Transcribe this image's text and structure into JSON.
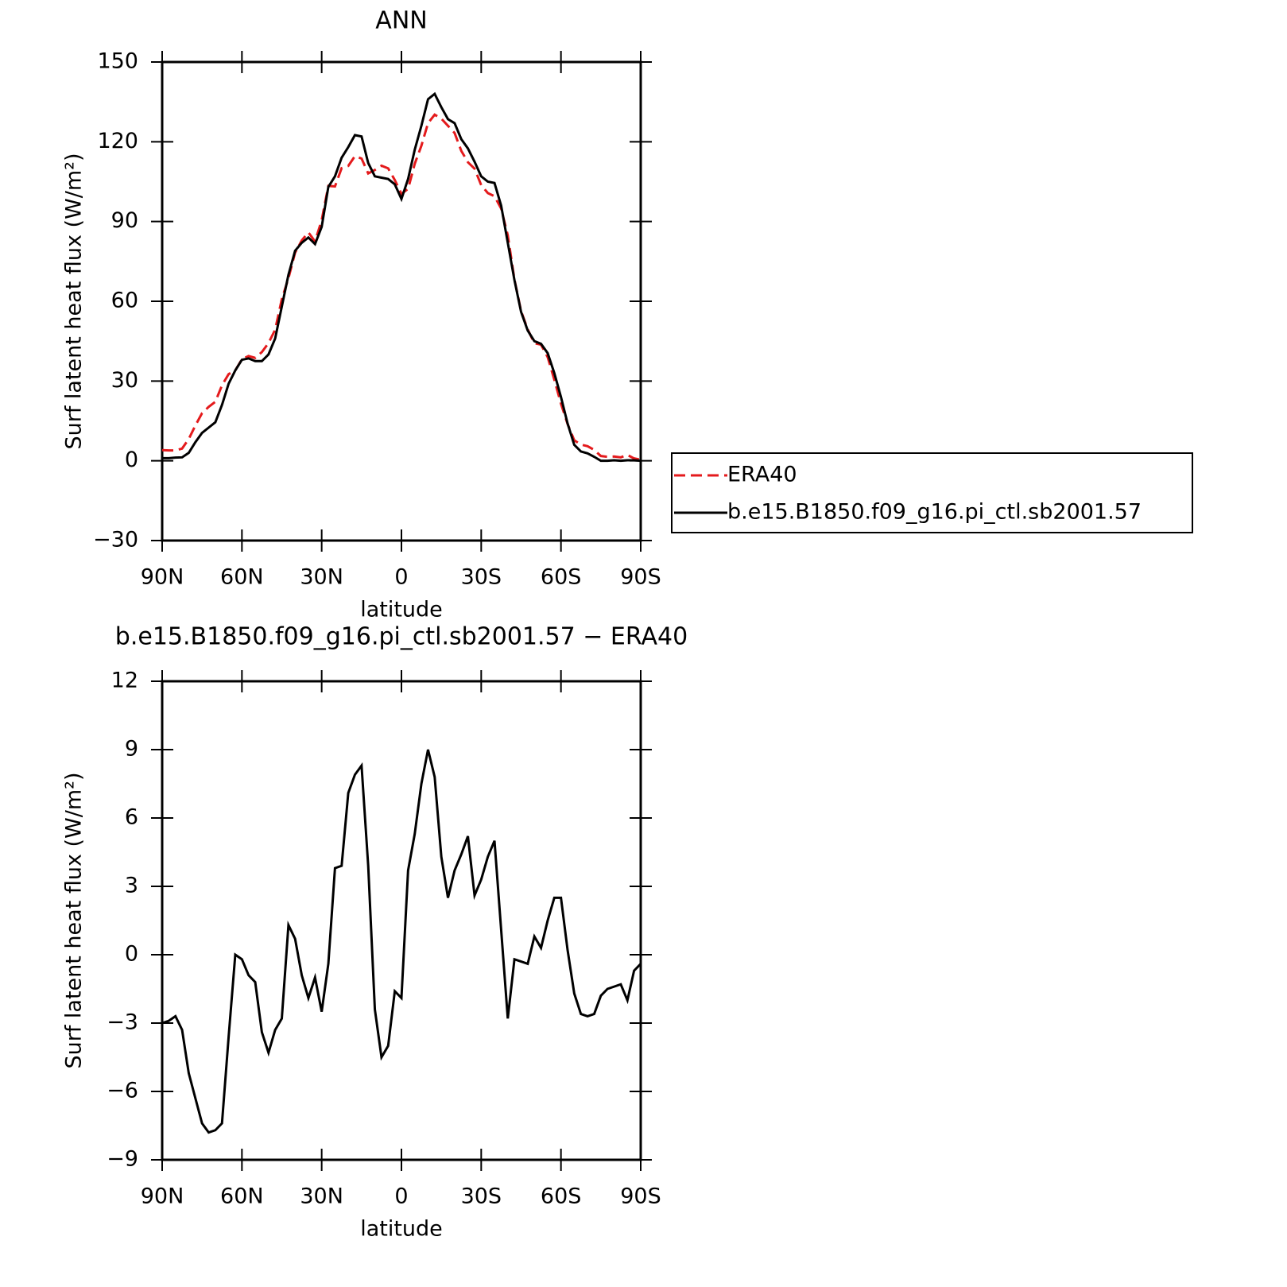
{
  "chart_data": [
    {
      "type": "line",
      "title": "ANN",
      "xlabel": "latitude",
      "ylabel": "Surf latent heat flux (W/m²)",
      "x": [
        90,
        87.5,
        85,
        82.5,
        80,
        77.5,
        75,
        72.5,
        70,
        67.5,
        65,
        62.5,
        60,
        57.5,
        55,
        52.5,
        50,
        47.5,
        45,
        42.5,
        40,
        37.5,
        35,
        32.5,
        30,
        27.5,
        25,
        22.5,
        20,
        17.5,
        15,
        12.5,
        10,
        7.5,
        5,
        2.5,
        0,
        -2.5,
        -5,
        -7.5,
        -10,
        -12.5,
        -15,
        -17.5,
        -20,
        -22.5,
        -25,
        -27.5,
        -30,
        -32.5,
        -35,
        -37.5,
        -40,
        -42.5,
        -45,
        -47.5,
        -50,
        -52.5,
        -55,
        -57.5,
        -60,
        -62.5,
        -65,
        -67.5,
        -70,
        -72.5,
        -75,
        -77.5,
        -80,
        -82.5,
        -85,
        -87.5,
        -90
      ],
      "xlim": [
        90,
        -90
      ],
      "xticks": [
        {
          "value": 90,
          "label": "90N"
        },
        {
          "value": 60,
          "label": "60N"
        },
        {
          "value": 30,
          "label": "30N"
        },
        0,
        {
          "value": -30,
          "label": "30S"
        },
        {
          "value": -60,
          "label": "60S"
        },
        {
          "value": -90,
          "label": "90S"
        }
      ],
      "ylim": [
        -30,
        150
      ],
      "yticks": [
        {
          "value": -30,
          "label": "−30"
        },
        0,
        30,
        60,
        90,
        120,
        150
      ],
      "legend": "right",
      "series": [
        {
          "name": "ERA40",
          "color": "#e41a1c",
          "dash": "dashed",
          "values": [
            4,
            3.9,
            3.9,
            4.6,
            8.2,
            13.3,
            17.9,
            20.3,
            22.2,
            28.4,
            32.6,
            34,
            38.2,
            39.4,
            38.7,
            40.9,
            44.3,
            49.3,
            60.8,
            68.7,
            78.3,
            82.9,
            85.9,
            82.5,
            90.5,
            103.4,
            103.2,
            110.1,
            110.9,
            114.6,
            113.7,
            108.1,
            109.4,
            111,
            110,
            105.6,
            100.4,
            102.3,
            111.7,
            118.5,
            127,
            130.2,
            128.7,
            126,
            123.3,
            116.6,
            112.3,
            109.9,
            103.7,
            100.7,
            99.5,
            94.9,
            84.8,
            68.2,
            56.3,
            49.4,
            44.2,
            43.7,
            39,
            30.5,
            21.5,
            13.8,
            7.7,
            6.1,
            5.5,
            4.1,
            1.8,
            1.5,
            1.6,
            1.3,
            2.2,
            0.9,
            0.4
          ]
        },
        {
          "name": "b.e15.B1850.f09_g16.pi_ctl.sb2001.57",
          "color": "#000000",
          "dash": "solid",
          "values": [
            1,
            1,
            1.2,
            1.3,
            3,
            7,
            10.5,
            12.5,
            14.5,
            21,
            29,
            34,
            38,
            38.5,
            37.5,
            37.5,
            40,
            46,
            58,
            70,
            79,
            82,
            84,
            81.5,
            88,
            103,
            107,
            114,
            118,
            122.5,
            122,
            112,
            107,
            106.5,
            106,
            104,
            98.5,
            106,
            117,
            126,
            136,
            138,
            133,
            128.5,
            127,
            121,
            117.5,
            112.5,
            107,
            105,
            104.5,
            96,
            82,
            68,
            56,
            49,
            45,
            44,
            40.5,
            33,
            24,
            14,
            6,
            3.5,
            2.8,
            1.5,
            0,
            0,
            0.2,
            0,
            0.2,
            0.2,
            0
          ]
        }
      ]
    },
    {
      "type": "line",
      "title": "b.e15.B1850.f09_g16.pi_ctl.sb2001.57 − ERA40",
      "xlabel": "latitude",
      "ylabel": "Surf latent heat flux (W/m²)",
      "x": [
        90,
        87.5,
        85,
        82.5,
        80,
        77.5,
        75,
        72.5,
        70,
        67.5,
        65,
        62.5,
        60,
        57.5,
        55,
        52.5,
        50,
        47.5,
        45,
        42.5,
        40,
        37.5,
        35,
        32.5,
        30,
        27.5,
        25,
        22.5,
        20,
        17.5,
        15,
        12.5,
        10,
        7.5,
        5,
        2.5,
        0,
        -2.5,
        -5,
        -7.5,
        -10,
        -12.5,
        -15,
        -17.5,
        -20,
        -22.5,
        -25,
        -27.5,
        -30,
        -32.5,
        -35,
        -37.5,
        -40,
        -42.5,
        -45,
        -47.5,
        -50,
        -52.5,
        -55,
        -57.5,
        -60,
        -62.5,
        -65,
        -67.5,
        -70,
        -72.5,
        -75,
        -77.5,
        -80,
        -82.5,
        -85,
        -87.5,
        -90
      ],
      "xlim": [
        90,
        -90
      ],
      "xticks": [
        {
          "value": 90,
          "label": "90N"
        },
        {
          "value": 60,
          "label": "60N"
        },
        {
          "value": 30,
          "label": "30N"
        },
        0,
        {
          "value": -30,
          "label": "30S"
        },
        {
          "value": -60,
          "label": "60S"
        },
        {
          "value": -90,
          "label": "90S"
        }
      ],
      "ylim": [
        -9,
        12
      ],
      "yticks": [
        {
          "value": -9,
          "label": "−9"
        },
        {
          "value": -6,
          "label": "−6"
        },
        {
          "value": -3,
          "label": "−3"
        },
        0,
        3,
        6,
        9,
        12
      ],
      "color": "#000000",
      "values": [
        -3,
        -2.9,
        -2.7,
        -3.3,
        -5.2,
        -6.3,
        -7.4,
        -7.8,
        -7.7,
        -7.4,
        -3.6,
        0,
        -0.2,
        -0.9,
        -1.2,
        -3.4,
        -4.3,
        -3.3,
        -2.8,
        1.3,
        0.7,
        -0.9,
        -1.9,
        -1,
        -2.5,
        -0.4,
        3.8,
        3.9,
        7.1,
        7.9,
        8.3,
        3.9,
        -2.4,
        -4.5,
        -4,
        -1.6,
        -1.9,
        3.7,
        5.3,
        7.5,
        9,
        7.8,
        4.3,
        2.5,
        3.7,
        4.4,
        5.2,
        2.6,
        3.3,
        4.3,
        5,
        1.1,
        -2.8,
        -0.2,
        -0.3,
        -0.4,
        0.8,
        0.3,
        1.5,
        2.5,
        2.5,
        0.2,
        -1.7,
        -2.6,
        -2.7,
        -2.6,
        -1.8,
        -1.5,
        -1.4,
        -1.3,
        -2,
        -0.7,
        -0.4
      ]
    }
  ]
}
